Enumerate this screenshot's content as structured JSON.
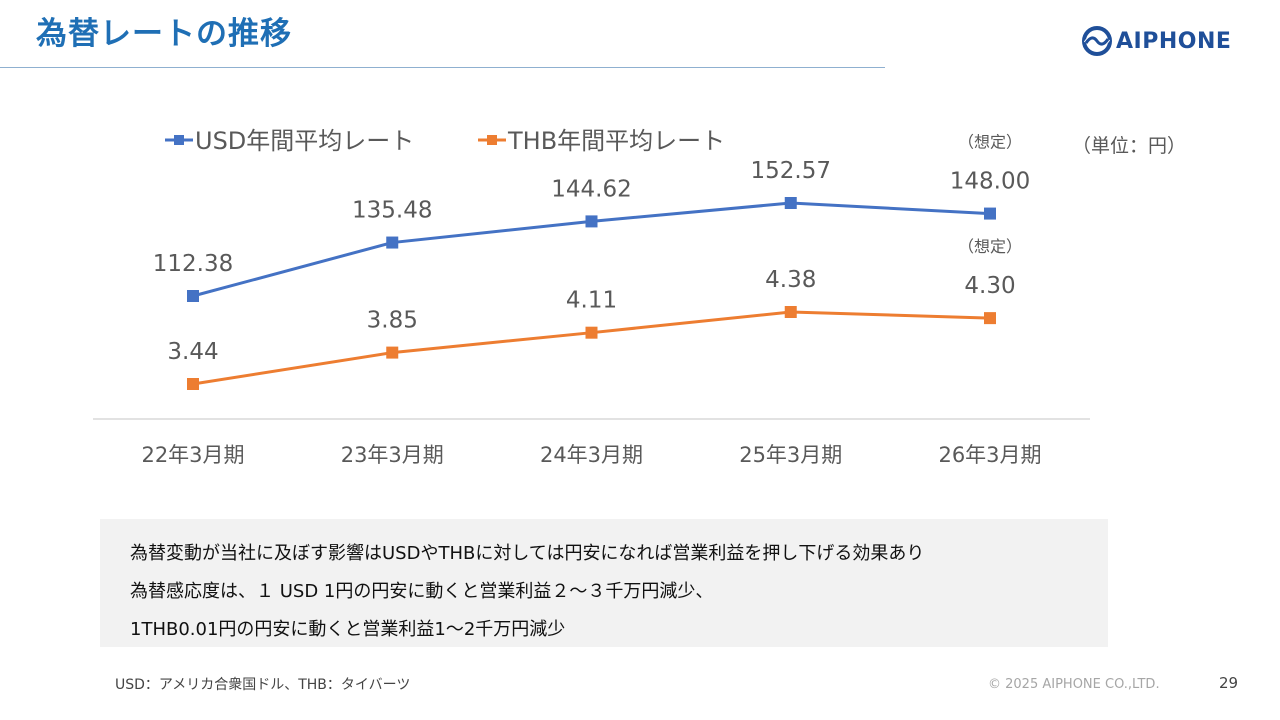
{
  "slide": {
    "title": "為替レートの推移",
    "logo_text": "AIPHONE",
    "unit_label": "（単位：円）",
    "notes": [
      "為替変動が当社に及ぼす影響はUSDやTHBに対しては円安になれば営業利益を押し下げる効果あり",
      "為替感応度は、１ USD 1円の円安に動くと営業利益２～３千万円減少、",
      "1THB0.01円の円安に動くと営業利益1～2千万円減少"
    ],
    "footnote": "USD：アメリカ合衆国ドル、THB：タイバーツ",
    "copyright": "© 2025 AIPHONE CO.,LTD.",
    "page_number": "29"
  },
  "colors": {
    "title": "#1f6fb5",
    "usd": "#4472c4",
    "thb": "#ed7d31",
    "axis": "#d9d9d9",
    "label": "#595959"
  },
  "chart_data": {
    "type": "line",
    "categories": [
      "22年3月期",
      "23年3月期",
      "24年3月期",
      "25年3月期",
      "26年3月期"
    ],
    "series": [
      {
        "name": "USD年間平均レート",
        "values": [
          112.38,
          135.48,
          144.62,
          152.57,
          148.0
        ],
        "labels": [
          "112.38",
          "135.48",
          "144.62",
          "152.57",
          "148.00"
        ],
        "color": "#4472c4"
      },
      {
        "name": "THB年間平均レート",
        "values": [
          3.44,
          3.85,
          4.11,
          4.38,
          4.3
        ],
        "labels": [
          "3.44",
          "3.85",
          "4.11",
          "4.38",
          "4.30"
        ],
        "color": "#ed7d31"
      }
    ],
    "annotations": [
      {
        "text": "（想定）",
        "series": 0,
        "index": 4
      },
      {
        "text": "（想定）",
        "series": 1,
        "index": 4
      }
    ],
    "legend_position": "top-left",
    "grid": false
  }
}
